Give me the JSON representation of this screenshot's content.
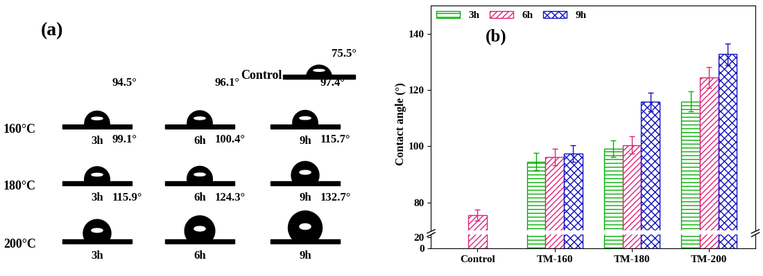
{
  "panel_a": {
    "label": "(a)",
    "control": {
      "label": "Control",
      "angle": "75.5°"
    },
    "rows": [
      {
        "label": "160°C",
        "cells": [
          {
            "time": "3h",
            "angle": "94.5°"
          },
          {
            "time": "6h",
            "angle": "96.1°"
          },
          {
            "time": "9h",
            "angle": "97.4°"
          }
        ]
      },
      {
        "label": "180°C",
        "cells": [
          {
            "time": "3h",
            "angle": "99.1°"
          },
          {
            "time": "6h",
            "angle": "100.4°"
          },
          {
            "time": "9h",
            "angle": "115.7°"
          }
        ]
      },
      {
        "label": "200°C",
        "cells": [
          {
            "time": "3h",
            "angle": "115.9°"
          },
          {
            "time": "6h",
            "angle": "124.3°"
          },
          {
            "time": "9h",
            "angle": "132.7°"
          }
        ]
      }
    ]
  },
  "chart_data": {
    "type": "bar",
    "annotations": [
      "(b)"
    ],
    "y_label": "Contact angle (°)",
    "categories": [
      "Control",
      "TM-160",
      "TM-180",
      "TM-200"
    ],
    "series": [
      {
        "name": "3h",
        "color": "#00b000",
        "values": [
          null,
          94.5,
          99.1,
          115.9
        ],
        "errors": [
          null,
          3,
          3,
          3.5
        ]
      },
      {
        "name": "6h",
        "color": "#e0207a",
        "values": [
          75.5,
          96.1,
          100.4,
          124.3
        ],
        "errors": [
          2,
          3,
          3,
          3.7
        ]
      },
      {
        "name": "9h",
        "color": "#1010c0",
        "values": [
          null,
          97.4,
          115.7,
          132.7
        ],
        "errors": [
          null,
          3,
          3.3,
          3.8
        ]
      }
    ],
    "ylim": [
      70,
      150
    ],
    "yticks": [
      80,
      100,
      120,
      140
    ],
    "broken_axis": {
      "ylim": [
        0,
        25
      ],
      "yticks": [
        0,
        20
      ]
    },
    "legend": "upper left"
  }
}
